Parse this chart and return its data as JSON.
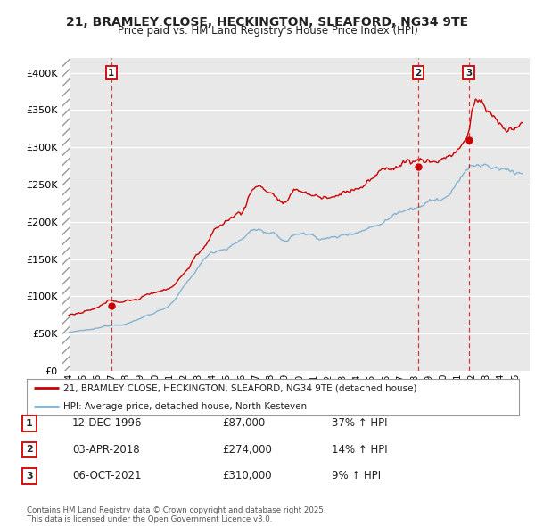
{
  "title_line1": "21, BRAMLEY CLOSE, HECKINGTON, SLEAFORD, NG34 9TE",
  "title_line2": "Price paid vs. HM Land Registry's House Price Index (HPI)",
  "background_color": "#ffffff",
  "plot_bg_color": "#e8e8e8",
  "grid_color": "#ffffff",
  "red_line_color": "#cc0000",
  "blue_line_color": "#7aadcf",
  "sale_points": [
    {
      "date_num": 1996.95,
      "price": 87000,
      "label": "1"
    },
    {
      "date_num": 2018.25,
      "price": 274000,
      "label": "2"
    },
    {
      "date_num": 2021.76,
      "price": 310000,
      "label": "3"
    }
  ],
  "vline_dates": [
    1996.95,
    2018.25,
    2021.76
  ],
  "legend_line1": "21, BRAMLEY CLOSE, HECKINGTON, SLEAFORD, NG34 9TE (detached house)",
  "legend_line2": "HPI: Average price, detached house, North Kesteven",
  "table_rows": [
    {
      "num": "1",
      "date": "12-DEC-1996",
      "price": "£87,000",
      "change": "37% ↑ HPI"
    },
    {
      "num": "2",
      "date": "03-APR-2018",
      "price": "£274,000",
      "change": "14% ↑ HPI"
    },
    {
      "num": "3",
      "date": "06-OCT-2021",
      "price": "£310,000",
      "change": "9% ↑ HPI"
    }
  ],
  "footer": "Contains HM Land Registry data © Crown copyright and database right 2025.\nThis data is licensed under the Open Government Licence v3.0.",
  "ylim": [
    0,
    420000
  ],
  "xlim": [
    1993.5,
    2026.0
  ],
  "hatch_end": 1994.08
}
